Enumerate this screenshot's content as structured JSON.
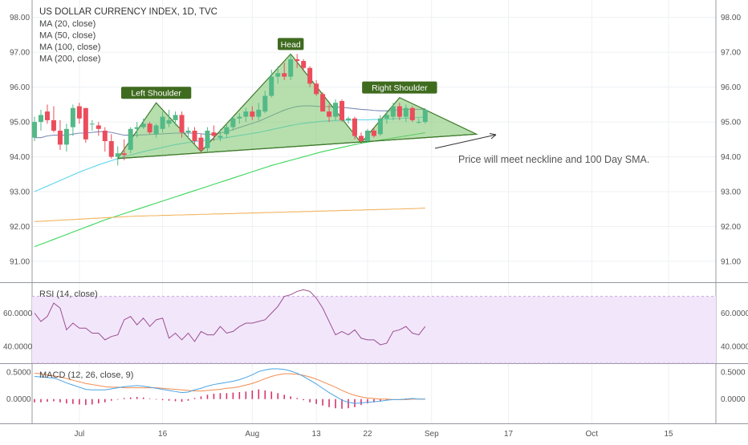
{
  "chart_data": {
    "type": "candlestick",
    "title": "US DOLLAR CURRENCY INDEX, 1D, TVC",
    "legend": [
      "MA (20, close)",
      "MA (50, close)",
      "MA (100, close)",
      "MA (200, close)"
    ],
    "price_axis": {
      "ticks": [
        "98.00",
        "97.00",
        "96.00",
        "95.00",
        "94.00",
        "93.00",
        "92.00",
        "91.00"
      ],
      "ylim": [
        90.4,
        98.5
      ]
    },
    "x_axis": {
      "ticks": [
        "Jul",
        "16",
        "Aug",
        "13",
        "22",
        "Sep",
        "17",
        "Oct",
        "15"
      ]
    },
    "candles": [
      {
        "o": 94.55,
        "h": 95.15,
        "l": 94.45,
        "c": 95.0
      },
      {
        "o": 95.0,
        "h": 95.35,
        "l": 94.75,
        "c": 95.2
      },
      {
        "o": 95.3,
        "h": 95.5,
        "l": 94.95,
        "c": 95.05
      },
      {
        "o": 95.05,
        "h": 95.45,
        "l": 94.7,
        "c": 94.75
      },
      {
        "o": 94.75,
        "h": 95.05,
        "l": 94.2,
        "c": 94.35
      },
      {
        "o": 94.35,
        "h": 94.95,
        "l": 94.15,
        "c": 94.8
      },
      {
        "o": 94.85,
        "h": 95.5,
        "l": 94.6,
        "c": 95.4
      },
      {
        "o": 95.45,
        "h": 95.55,
        "l": 94.95,
        "c": 95.1
      },
      {
        "o": 95.4,
        "h": 95.4,
        "l": 94.4,
        "c": 94.5
      },
      {
        "o": 94.95,
        "h": 95.05,
        "l": 94.75,
        "c": 94.95
      },
      {
        "o": 94.9,
        "h": 95.0,
        "l": 94.6,
        "c": 94.8
      },
      {
        "o": 94.75,
        "h": 94.85,
        "l": 94.15,
        "c": 94.45
      },
      {
        "o": 94.45,
        "h": 94.65,
        "l": 93.95,
        "c": 94.0
      },
      {
        "o": 94.0,
        "h": 94.3,
        "l": 93.75,
        "c": 94.1
      },
      {
        "o": 94.1,
        "h": 94.5,
        "l": 93.9,
        "c": 94.05
      },
      {
        "o": 94.2,
        "h": 94.85,
        "l": 94.1,
        "c": 94.8
      },
      {
        "o": 94.8,
        "h": 95.0,
        "l": 94.55,
        "c": 94.85
      },
      {
        "o": 94.85,
        "h": 95.1,
        "l": 94.8,
        "c": 94.95
      },
      {
        "o": 94.95,
        "h": 95.0,
        "l": 94.65,
        "c": 94.7
      },
      {
        "o": 94.65,
        "h": 94.95,
        "l": 94.55,
        "c": 94.9
      },
      {
        "o": 94.8,
        "h": 95.3,
        "l": 94.7,
        "c": 95.15
      },
      {
        "o": 94.95,
        "h": 95.35,
        "l": 94.85,
        "c": 95.05
      },
      {
        "o": 95.05,
        "h": 95.3,
        "l": 94.9,
        "c": 95.2
      },
      {
        "o": 95.2,
        "h": 95.3,
        "l": 94.55,
        "c": 94.7
      },
      {
        "o": 94.7,
        "h": 94.85,
        "l": 94.5,
        "c": 94.75
      },
      {
        "o": 94.75,
        "h": 94.85,
        "l": 94.35,
        "c": 94.45
      },
      {
        "o": 94.55,
        "h": 94.65,
        "l": 94.1,
        "c": 94.2
      },
      {
        "o": 94.25,
        "h": 94.85,
        "l": 94.15,
        "c": 94.75
      },
      {
        "o": 94.7,
        "h": 94.9,
        "l": 94.45,
        "c": 94.6
      },
      {
        "o": 94.55,
        "h": 94.8,
        "l": 94.45,
        "c": 94.6
      },
      {
        "o": 94.65,
        "h": 94.95,
        "l": 94.55,
        "c": 94.85
      },
      {
        "o": 94.85,
        "h": 95.15,
        "l": 94.75,
        "c": 95.1
      },
      {
        "o": 95.1,
        "h": 95.25,
        "l": 94.95,
        "c": 95.15
      },
      {
        "o": 95.15,
        "h": 95.4,
        "l": 95.0,
        "c": 95.3
      },
      {
        "o": 95.3,
        "h": 95.45,
        "l": 95.05,
        "c": 95.15
      },
      {
        "o": 95.15,
        "h": 95.55,
        "l": 95.05,
        "c": 95.35
      },
      {
        "o": 95.3,
        "h": 95.9,
        "l": 95.25,
        "c": 95.75
      },
      {
        "o": 95.75,
        "h": 96.5,
        "l": 95.7,
        "c": 96.3
      },
      {
        "o": 96.3,
        "h": 96.6,
        "l": 96.1,
        "c": 96.4
      },
      {
        "o": 96.4,
        "h": 96.7,
        "l": 96.2,
        "c": 96.3
      },
      {
        "o": 96.3,
        "h": 96.95,
        "l": 96.2,
        "c": 96.8
      },
      {
        "o": 96.8,
        "h": 96.95,
        "l": 96.55,
        "c": 96.75
      },
      {
        "o": 96.75,
        "h": 96.8,
        "l": 96.45,
        "c": 96.55
      },
      {
        "o": 96.55,
        "h": 96.6,
        "l": 96.0,
        "c": 96.1
      },
      {
        "o": 96.1,
        "h": 96.2,
        "l": 95.75,
        "c": 95.8
      },
      {
        "o": 95.8,
        "h": 95.85,
        "l": 95.3,
        "c": 95.3
      },
      {
        "o": 95.3,
        "h": 95.5,
        "l": 95.0,
        "c": 95.15
      },
      {
        "o": 95.15,
        "h": 95.65,
        "l": 95.05,
        "c": 95.55
      },
      {
        "o": 95.6,
        "h": 95.65,
        "l": 95.0,
        "c": 95.05
      },
      {
        "o": 95.05,
        "h": 95.15,
        "l": 94.95,
        "c": 95.1
      },
      {
        "o": 95.1,
        "h": 95.15,
        "l": 94.5,
        "c": 94.6
      },
      {
        "o": 94.6,
        "h": 94.7,
        "l": 94.4,
        "c": 94.45
      },
      {
        "o": 94.45,
        "h": 94.8,
        "l": 94.4,
        "c": 94.75
      },
      {
        "o": 94.75,
        "h": 94.85,
        "l": 94.55,
        "c": 94.6
      },
      {
        "o": 94.65,
        "h": 95.2,
        "l": 94.6,
        "c": 95.1
      },
      {
        "o": 95.1,
        "h": 95.3,
        "l": 94.95,
        "c": 95.2
      },
      {
        "o": 95.15,
        "h": 95.55,
        "l": 95.05,
        "c": 95.45
      },
      {
        "o": 95.45,
        "h": 95.55,
        "l": 95.05,
        "c": 95.15
      },
      {
        "o": 95.15,
        "h": 95.5,
        "l": 95.0,
        "c": 95.4
      },
      {
        "o": 95.4,
        "h": 95.45,
        "l": 95.0,
        "c": 95.05
      },
      {
        "o": 95.0,
        "h": 95.1,
        "l": 94.95,
        "c": 95.0
      },
      {
        "o": 95.0,
        "h": 95.4,
        "l": 94.95,
        "c": 95.35
      }
    ],
    "moving_averages": [
      {
        "name": "MA (20, close)",
        "color": "#7b8bb8",
        "values": [
          94.55,
          94.55,
          94.6,
          94.62,
          94.62,
          94.62,
          94.65,
          94.68,
          94.68,
          94.7,
          94.72,
          94.72,
          94.7,
          94.66,
          94.62,
          94.62,
          94.62,
          94.63,
          94.64,
          94.65,
          94.66,
          94.67,
          94.68,
          94.68,
          94.68,
          94.68,
          94.66,
          94.64,
          94.65,
          94.68,
          94.72,
          94.78,
          94.84,
          94.9,
          94.96,
          95.02,
          95.1,
          95.18,
          95.26,
          95.34,
          95.4,
          95.44,
          95.46,
          95.46,
          95.45,
          95.44,
          95.44,
          95.43,
          95.42,
          95.4,
          95.38,
          95.36,
          95.35,
          95.33,
          95.32,
          95.32,
          95.33,
          95.35,
          95.36,
          95.36,
          95.36,
          95.37
        ]
      },
      {
        "name": "MA (50, close)",
        "color": "#5cd6ec",
        "values": [
          93.0,
          93.08,
          93.16,
          93.24,
          93.32,
          93.4,
          93.48,
          93.56,
          93.63,
          93.7,
          93.77,
          93.83,
          93.89,
          93.95,
          94.0,
          94.05,
          94.1,
          94.15,
          94.19,
          94.23,
          94.27,
          94.31,
          94.35,
          94.38,
          94.41,
          94.44,
          94.46,
          94.48,
          94.5,
          94.52,
          94.55,
          94.58,
          94.61,
          94.64,
          94.67,
          94.7,
          94.74,
          94.78,
          94.82,
          94.86,
          94.9,
          94.93,
          94.96,
          94.98,
          95.0,
          95.02,
          95.03,
          95.04,
          95.05,
          95.05,
          95.06,
          95.06,
          95.06,
          95.07,
          95.07,
          95.08,
          95.09,
          95.1,
          95.11,
          95.12,
          95.13,
          95.14
        ]
      },
      {
        "name": "MA (100, close)",
        "color": "#3bd65a",
        "values": [
          91.42,
          91.49,
          91.56,
          91.63,
          91.7,
          91.77,
          91.84,
          91.91,
          91.98,
          92.05,
          92.12,
          92.19,
          92.25,
          92.31,
          92.37,
          92.43,
          92.49,
          92.55,
          92.61,
          92.67,
          92.73,
          92.79,
          92.85,
          92.91,
          92.97,
          93.03,
          93.09,
          93.15,
          93.21,
          93.27,
          93.33,
          93.39,
          93.45,
          93.51,
          93.57,
          93.63,
          93.69,
          93.75,
          93.8,
          93.85,
          93.9,
          93.95,
          94.0,
          94.05,
          94.1,
          94.15,
          94.19,
          94.23,
          94.27,
          94.31,
          94.35,
          94.39,
          94.42,
          94.45,
          94.48,
          94.51,
          94.54,
          94.57,
          94.6,
          94.63,
          94.66,
          94.69
        ]
      },
      {
        "name": "MA (200, close)",
        "color": "#f2b45f",
        "values": [
          92.14,
          92.15,
          92.16,
          92.17,
          92.18,
          92.19,
          92.2,
          92.21,
          92.22,
          92.23,
          92.24,
          92.25,
          92.26,
          92.27,
          92.28,
          92.29,
          92.3,
          92.3,
          92.31,
          92.31,
          92.32,
          92.32,
          92.33,
          92.33,
          92.34,
          92.34,
          92.35,
          92.35,
          92.36,
          92.36,
          92.37,
          92.37,
          92.38,
          92.38,
          92.39,
          92.39,
          92.4,
          92.4,
          92.41,
          92.41,
          92.42,
          92.42,
          92.43,
          92.43,
          92.44,
          92.44,
          92.45,
          92.45,
          92.46,
          92.46,
          92.47,
          92.47,
          92.48,
          92.48,
          92.49,
          92.49,
          92.5,
          92.5,
          92.51,
          92.51,
          92.52,
          92.53
        ]
      }
    ],
    "pattern": {
      "labels": [
        "Left Shoulder",
        "Head",
        "Right Shoulder"
      ],
      "points": [
        {
          "i": 13,
          "price": 93.95
        },
        {
          "i": 19,
          "price": 95.55
        },
        {
          "i": 26,
          "price": 94.15
        },
        {
          "i": 40,
          "price": 96.95
        },
        {
          "i": 51,
          "price": 94.4
        },
        {
          "i": 57,
          "price": 95.7
        },
        {
          "i": 69,
          "price": 94.65
        }
      ],
      "annotation": "Price will meet neckline and 100 Day SMA."
    },
    "rsi": {
      "label": "RSI (14, close)",
      "ticks": [
        "60.0000",
        "40.0000"
      ],
      "ylim": [
        30,
        78
      ],
      "band": [
        30,
        70
      ],
      "color": "#9a4f8f",
      "values": [
        60,
        55,
        58,
        66,
        63,
        50,
        54,
        51,
        51,
        48,
        48,
        44,
        46,
        47,
        56,
        58,
        53,
        57,
        52,
        56,
        57,
        45,
        48,
        44,
        48,
        43,
        49,
        47,
        47,
        52,
        48,
        49,
        52,
        54,
        54,
        55,
        56,
        60,
        64,
        70,
        71,
        73,
        74,
        73,
        69,
        63,
        55,
        47,
        49,
        47,
        50,
        45,
        44,
        44,
        41,
        42,
        49,
        50,
        52,
        48,
        47,
        52
      ]
    },
    "macd": {
      "label": "MACD (12, 26, close, 9)",
      "ticks": [
        "0.5000",
        "0.0000"
      ],
      "ylim": [
        -0.45,
        0.65
      ],
      "macd_color": "#4aa3e6",
      "signal_color": "#f08c4f",
      "hist_color": "#d6336c",
      "macd": [
        0.42,
        0.41,
        0.4,
        0.39,
        0.35,
        0.3,
        0.26,
        0.22,
        0.18,
        0.17,
        0.17,
        0.17,
        0.19,
        0.21,
        0.23,
        0.24,
        0.25,
        0.24,
        0.22,
        0.2,
        0.18,
        0.16,
        0.14,
        0.12,
        0.13,
        0.17,
        0.2,
        0.24,
        0.27,
        0.29,
        0.31,
        0.33,
        0.36,
        0.4,
        0.45,
        0.51,
        0.54,
        0.56,
        0.56,
        0.55,
        0.52,
        0.48,
        0.42,
        0.35,
        0.28,
        0.2,
        0.12,
        0.05,
        -0.02,
        -0.06,
        -0.08,
        -0.07,
        -0.06,
        -0.05,
        -0.04,
        -0.02,
        -0.01,
        -0.01,
        0.0,
        0.01,
        0.0,
        0.0
      ],
      "signal": [
        0.48,
        0.47,
        0.45,
        0.43,
        0.41,
        0.38,
        0.35,
        0.32,
        0.29,
        0.27,
        0.25,
        0.23,
        0.22,
        0.22,
        0.21,
        0.21,
        0.21,
        0.21,
        0.21,
        0.21,
        0.2,
        0.19,
        0.18,
        0.17,
        0.16,
        0.15,
        0.15,
        0.16,
        0.17,
        0.18,
        0.2,
        0.21,
        0.23,
        0.26,
        0.29,
        0.33,
        0.38,
        0.42,
        0.45,
        0.47,
        0.47,
        0.46,
        0.44,
        0.41,
        0.37,
        0.32,
        0.27,
        0.22,
        0.16,
        0.11,
        0.07,
        0.04,
        0.02,
        0.01,
        0.0,
        0.0,
        -0.01,
        -0.01,
        -0.01,
        0.0,
        0.0,
        0.0
      ],
      "histogram": [
        -0.06,
        -0.06,
        -0.05,
        -0.04,
        -0.06,
        -0.08,
        -0.09,
        -0.1,
        -0.11,
        -0.1,
        -0.08,
        -0.06,
        -0.03,
        -0.01,
        0.02,
        0.03,
        0.04,
        0.03,
        0.01,
        -0.01,
        -0.02,
        -0.03,
        -0.04,
        -0.05,
        -0.03,
        0.02,
        0.05,
        0.08,
        0.1,
        0.11,
        0.11,
        0.12,
        0.13,
        0.14,
        0.16,
        0.18,
        0.16,
        0.14,
        0.11,
        0.08,
        0.05,
        0.02,
        -0.02,
        -0.06,
        -0.09,
        -0.12,
        -0.15,
        -0.17,
        -0.18,
        -0.17,
        -0.15,
        -0.11,
        -0.08,
        -0.06,
        -0.04,
        -0.02,
        0.0,
        0.0,
        0.01,
        0.01,
        0.0,
        0.0
      ]
    }
  },
  "colors": {
    "up": "#53b987",
    "down": "#eb4d5c",
    "pattern_fill": "#7cc46b",
    "pattern_stroke": "#3e7a2b",
    "label_bg": "#3f6b1f",
    "grid": "#eef0f3",
    "divider": "#9598a1"
  }
}
